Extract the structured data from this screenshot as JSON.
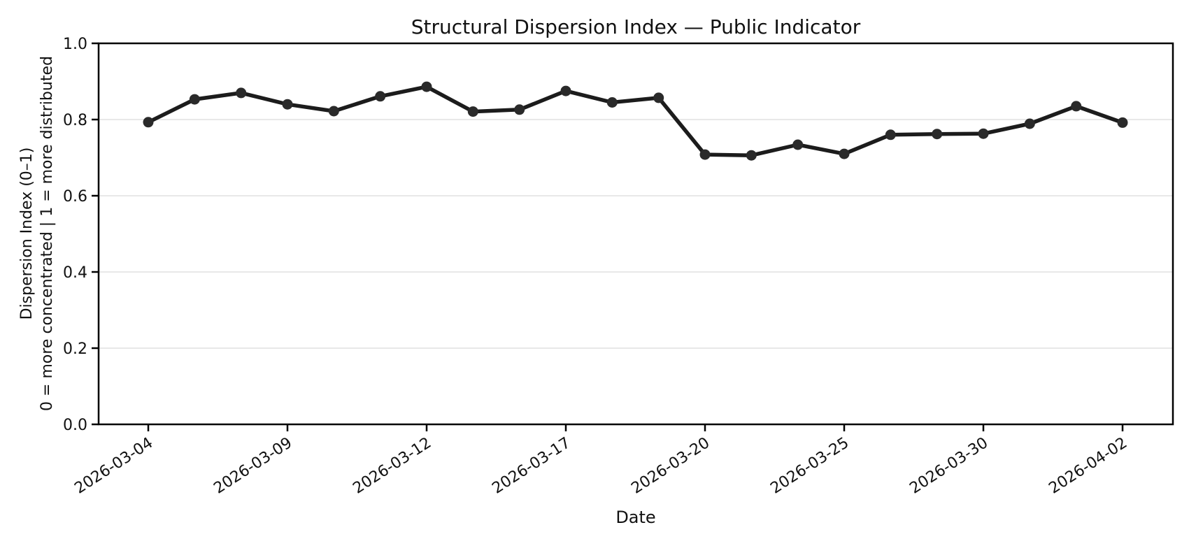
{
  "chart_data": {
    "type": "line",
    "title": "Structural Dispersion Index — Public Indicator",
    "xlabel": "Date",
    "ylabel_lines": {
      "0": "Dispersion Index (0–1)",
      "1": "0 = more concentrated | 1 = more distributed"
    },
    "x": [
      "2026-03-04",
      "2026-03-05",
      "2026-03-06",
      "2026-03-09",
      "2026-03-10",
      "2026-03-11",
      "2026-03-12",
      "2026-03-13",
      "2026-03-16",
      "2026-03-17",
      "2026-03-18",
      "2026-03-19",
      "2026-03-20",
      "2026-03-23",
      "2026-03-24",
      "2026-03-25",
      "2026-03-26",
      "2026-03-27",
      "2026-03-30",
      "2026-03-31",
      "2026-04-01",
      "2026-04-02"
    ],
    "series": [
      {
        "name": "Dispersion Index",
        "values": [
          0.793,
          0.853,
          0.87,
          0.84,
          0.822,
          0.861,
          0.886,
          0.821,
          0.826,
          0.875,
          0.845,
          0.857,
          0.708,
          0.706,
          0.734,
          0.71,
          0.76,
          0.762,
          0.763,
          0.789,
          0.835,
          0.792
        ]
      }
    ],
    "xtick_indices": [
      0,
      3,
      6,
      9,
      12,
      15,
      18,
      21
    ],
    "xtick_labels": [
      "2026-03-04",
      "2026-03-09",
      "2026-03-12",
      "2026-03-17",
      "2026-03-20",
      "2026-03-25",
      "2026-03-30",
      "2026-04-02"
    ],
    "ytick_values": [
      0.0,
      0.2,
      0.4,
      0.6,
      0.8,
      1.0
    ],
    "ytick_labels": [
      "0.0",
      "0.2",
      "0.4",
      "0.6",
      "0.8",
      "1.0"
    ],
    "ylim": [
      0.0,
      1.0
    ],
    "grid": "horizontal",
    "legend": "none",
    "colors": {
      "line": "#1c1c1c",
      "marker": "#2a2a2a",
      "grid": "#e4e4e4",
      "spine": "#000000",
      "background": "#ffffff"
    }
  }
}
